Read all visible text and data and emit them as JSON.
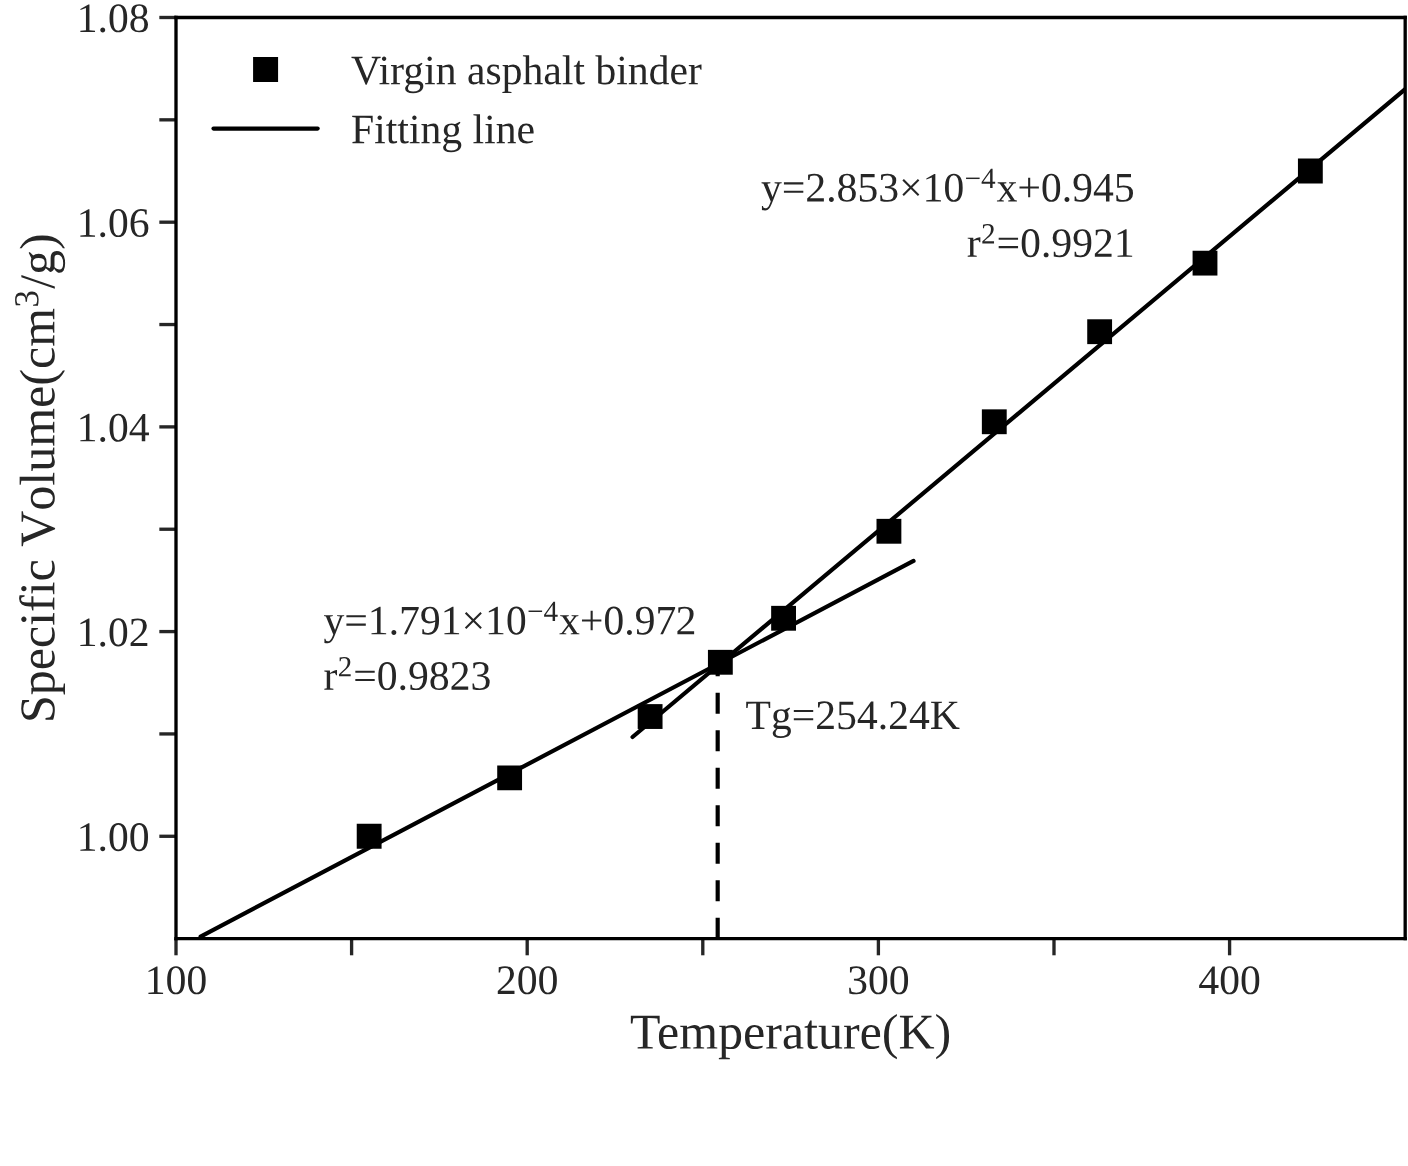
{
  "chart_data": {
    "type": "scatter",
    "xlabel": "Temperature(K)",
    "ylabel": "Specific Volume(cm$^{3}$/g)",
    "xlim": [
      100,
      450
    ],
    "ylim": [
      0.99,
      1.08
    ],
    "xticks": [
      100,
      {
        "value": 150,
        "label": null
      },
      200,
      {
        "value": 250,
        "label": null
      },
      300,
      {
        "value": 350,
        "label": null
      },
      400
    ],
    "yticks": [
      {
        "value": 1.0,
        "label": "1.00"
      },
      {
        "value": 1.01,
        "label": null
      },
      {
        "value": 1.02,
        "label": "1.02"
      },
      {
        "value": 1.03,
        "label": null
      },
      {
        "value": 1.04,
        "label": "1.04"
      },
      {
        "value": 1.05,
        "label": null
      },
      {
        "value": 1.06,
        "label": "1.06"
      },
      {
        "value": 1.07,
        "label": null
      },
      {
        "value": 1.08,
        "label": "1.08"
      }
    ],
    "series": [
      {
        "name": "Virgin asphalt binder",
        "marker": "square",
        "color": "#000000",
        "x": [
          155,
          195,
          235,
          255,
          273,
          303,
          333,
          363,
          393,
          423
        ],
        "values": [
          1.0,
          1.0057,
          1.0117,
          1.017,
          1.0213,
          1.0298,
          1.0405,
          1.0493,
          1.056,
          1.065
        ]
      },
      {
        "name": "Fitting line",
        "type": "line",
        "line_style": "solid",
        "color": "#000000",
        "x": [
          107,
          310
        ],
        "values": [
          0.9902,
          1.0269
        ]
      },
      {
        "type": "line",
        "line_style": "solid",
        "color": "#000000",
        "x": [
          230,
          450
        ],
        "values": [
          1.0097,
          1.073
        ]
      },
      {
        "type": "line",
        "line_style": "dashed",
        "color": "#000000",
        "x": [
          254.24,
          254.24
        ],
        "values": [
          0.99,
          1.017
        ]
      }
    ],
    "annotations": [
      "y=2.853×10$^{−4}$x+0.945",
      "r$^{2}$=0.9921",
      "y=1.791×10$^{−4}$x+0.972",
      "r$^{2}$=0.9823",
      {
        "text": "Tg=254.24K",
        "x": 254.24,
        "y": 1.017
      }
    ],
    "legend": "top left",
    "grid": false
  }
}
